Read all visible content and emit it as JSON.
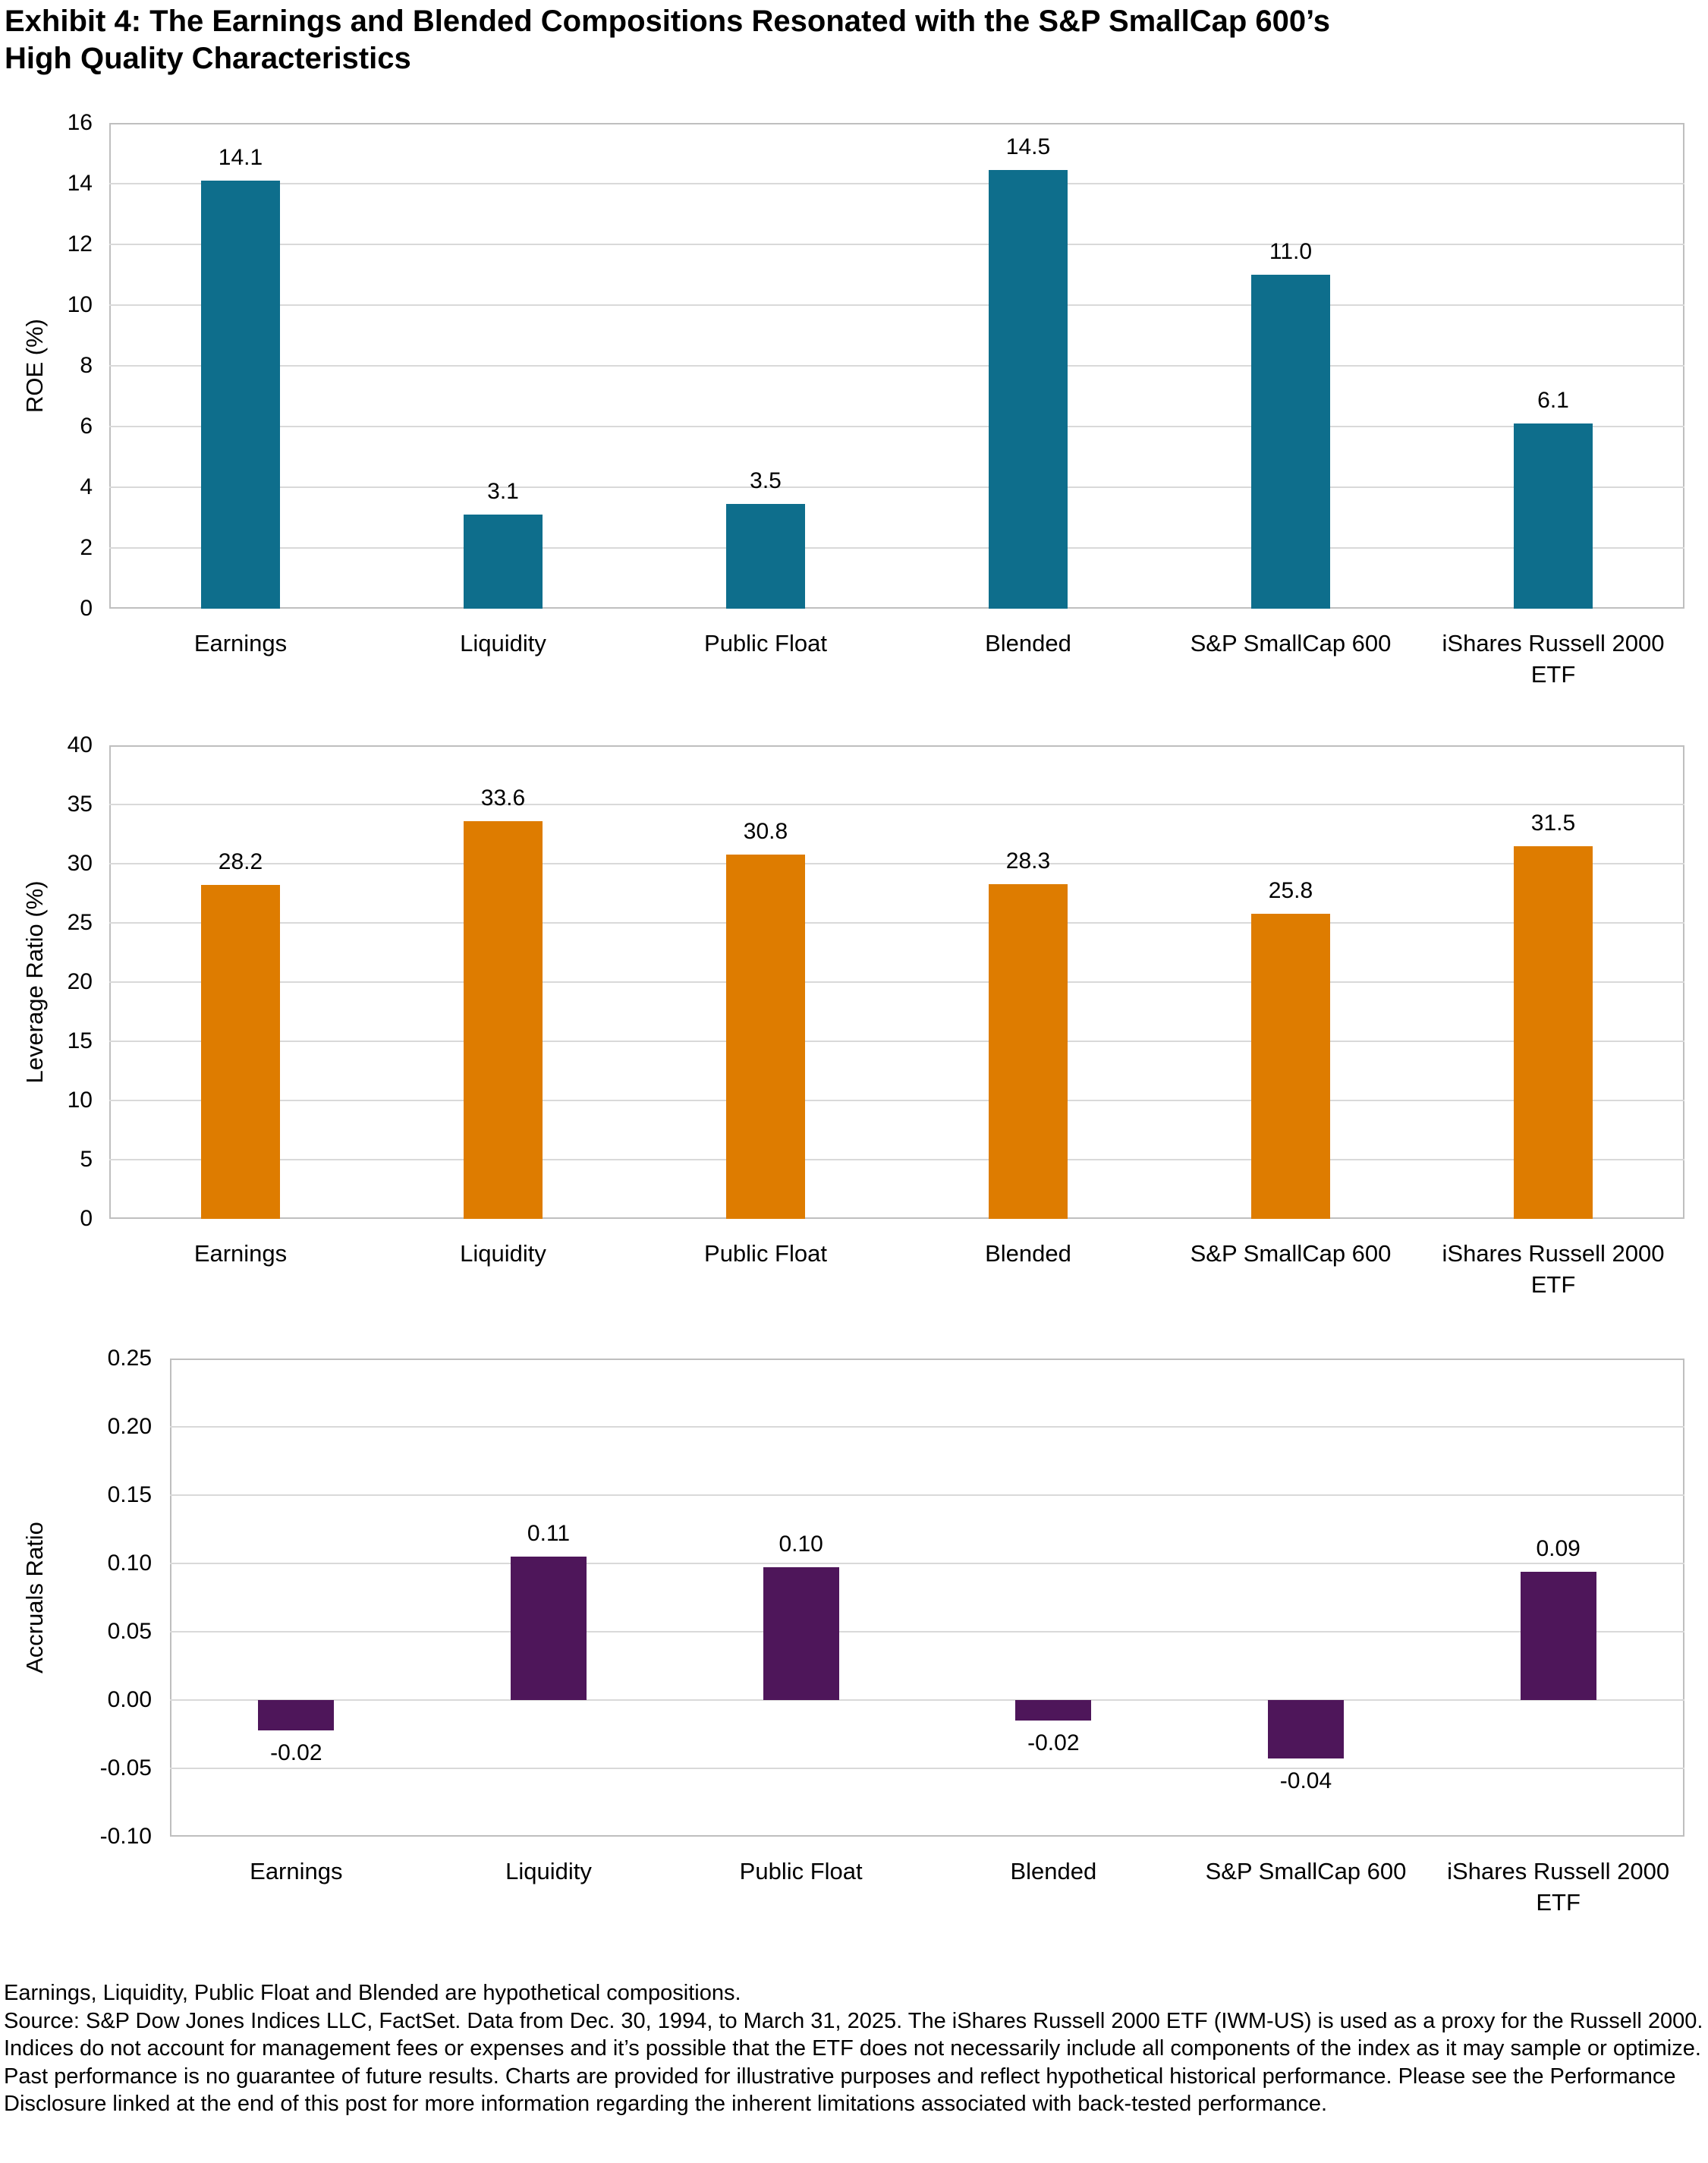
{
  "title": "Exhibit 4: The Earnings and Blended Compositions Resonated with the S&P SmallCap 600’s\nHigh Quality Characteristics",
  "colors": {
    "teal": "#0E6E8C",
    "orange": "#DE7C00",
    "purple": "#4E165A",
    "gridline": "#D9D9D9",
    "plot_border": "#BFBFBF",
    "text": "#000000"
  },
  "chart_data": [
    {
      "type": "bar",
      "name": "roe",
      "ylabel": "ROE (%)",
      "categories": [
        "Earnings",
        "Liquidity",
        "Public Float",
        "Blended",
        "S&P SmallCap 600",
        "iShares Russell 2000\nETF"
      ],
      "values": [
        14.1,
        3.1,
        3.5,
        14.5,
        11.0,
        6.1
      ],
      "value_labels": [
        "14.1",
        "3.1",
        "3.5",
        "14.5",
        "11.0",
        "6.1"
      ],
      "bar_heights": [
        14.1,
        3.1,
        3.45,
        14.45,
        11.0,
        6.1
      ],
      "ylim": [
        0,
        16
      ],
      "ystep": 2,
      "tick_decimals": 0,
      "bar_color": "#0E6E8C",
      "grid": true,
      "legend": "none",
      "xlabel": ""
    },
    {
      "type": "bar",
      "name": "leverage-ratio",
      "ylabel": "Leverage Ratio (%)",
      "categories": [
        "Earnings",
        "Liquidity",
        "Public Float",
        "Blended",
        "S&P SmallCap 600",
        "iShares Russell 2000\nETF"
      ],
      "values": [
        28.2,
        33.6,
        30.8,
        28.3,
        25.8,
        31.5
      ],
      "value_labels": [
        "28.2",
        "33.6",
        "30.8",
        "28.3",
        "25.8",
        "31.5"
      ],
      "bar_heights": [
        28.2,
        33.6,
        30.8,
        28.3,
        25.8,
        31.5
      ],
      "ylim": [
        0,
        40
      ],
      "ystep": 5,
      "tick_decimals": 0,
      "bar_color": "#DE7C00",
      "grid": true,
      "legend": "none",
      "xlabel": ""
    },
    {
      "type": "bar",
      "name": "accruals-ratio",
      "ylabel": "Accruals Ratio",
      "categories": [
        "Earnings",
        "Liquidity",
        "Public Float",
        "Blended",
        "S&P SmallCap 600",
        "iShares Russell 2000\nETF"
      ],
      "values": [
        -0.02,
        0.11,
        0.1,
        -0.02,
        -0.04,
        0.09
      ],
      "value_labels": [
        "-0.02",
        "0.11",
        "0.10",
        "-0.02",
        "-0.04",
        "0.09"
      ],
      "bar_heights": [
        -0.022,
        0.105,
        0.097,
        -0.015,
        -0.043,
        0.094
      ],
      "ylim": [
        -0.1,
        0.25
      ],
      "ystep": 0.05,
      "tick_decimals": 2,
      "bar_color": "#4E165A",
      "grid": true,
      "legend": "none",
      "xlabel": ""
    }
  ],
  "footnotes": {
    "line1": "Earnings, Liquidity, Public Float and Blended are hypothetical compositions.",
    "source": "Source: S&P Dow Jones Indices LLC, FactSet. Data from Dec. 30, 1994, to March 31, 2025. The iShares Russell 2000 ETF (IWM-US) is used as a proxy for the Russell 2000. Indices do not account for management fees or expenses and it’s possible that the ETF does not necessarily include all components of the index as it may sample or optimize. Past performance is no guarantee of future results. Charts are provided for illustrative purposes and reflect hypothetical historical performance. Please see the Performance Disclosure linked at the end of this post for more information regarding the inherent limitations associated with back-tested performance."
  }
}
